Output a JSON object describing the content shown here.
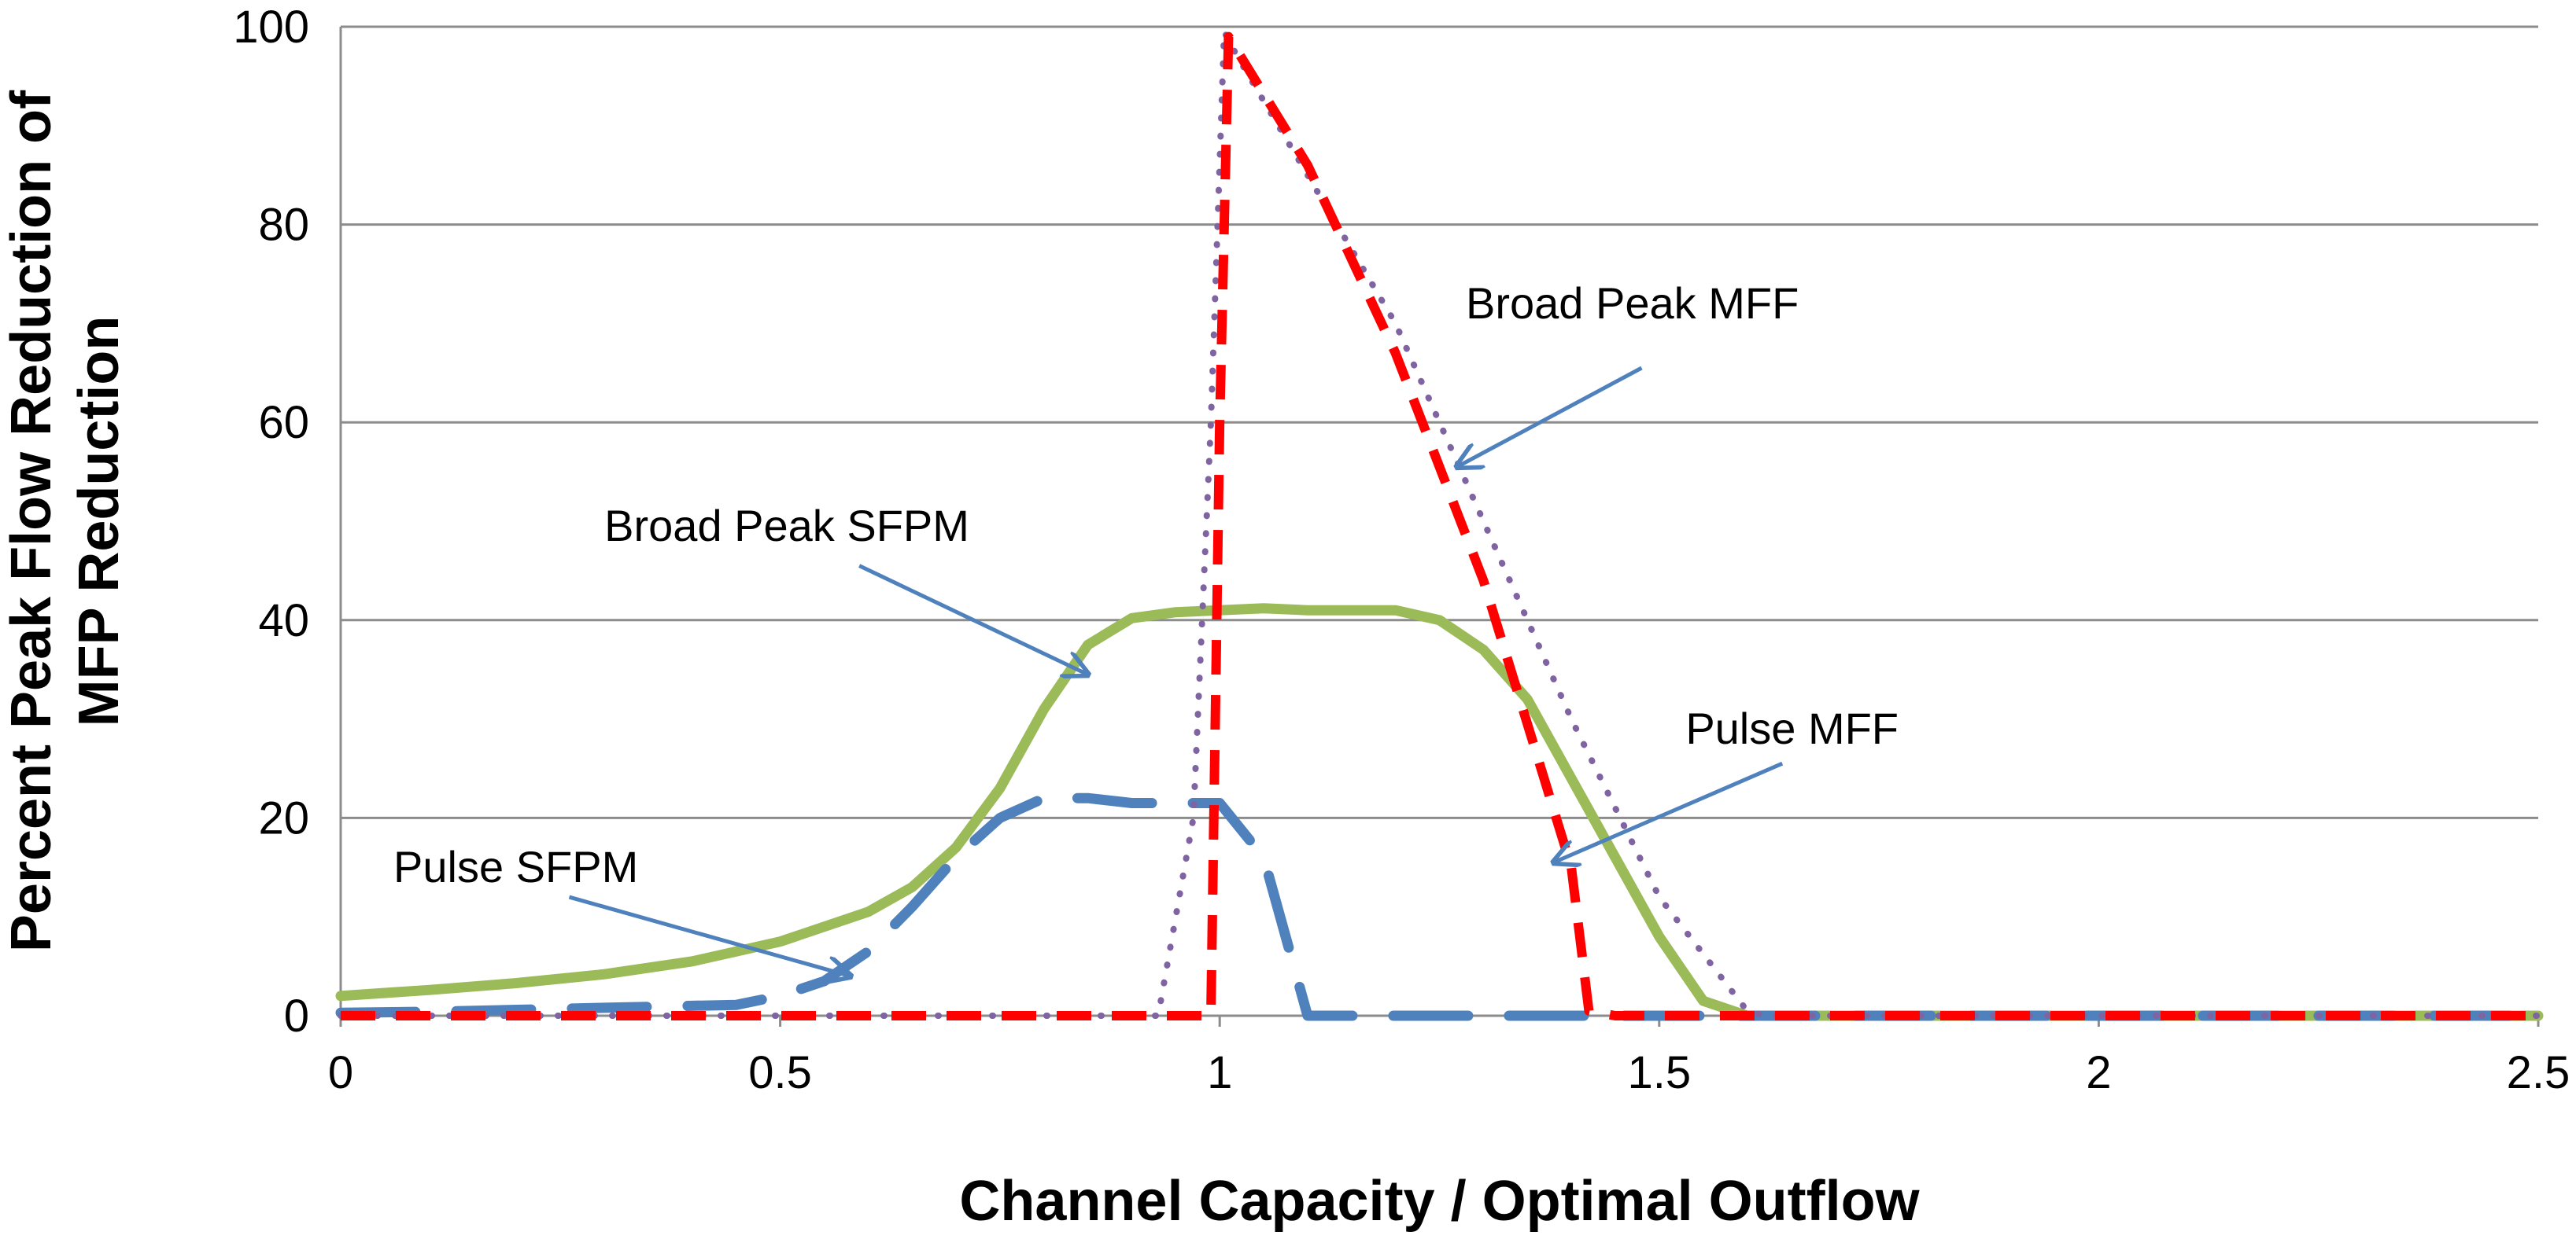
{
  "chart_data": {
    "type": "line",
    "title": "",
    "xlabel": "Channel Capacity / Optimal Outflow",
    "ylabel_lines": [
      "Percent Peak Flow Reduction of",
      "MFP Reduction"
    ],
    "xlim": [
      0,
      2.5
    ],
    "ylim": [
      0,
      100
    ],
    "xticks": [
      0,
      0.5,
      1,
      1.5,
      2,
      2.5
    ],
    "xtick_labels": [
      "0",
      "0.5",
      "1",
      "1.5",
      "2",
      "2.5"
    ],
    "yticks": [
      0,
      20,
      40,
      60,
      80,
      100
    ],
    "ytick_labels": [
      "0",
      "20",
      "40",
      "60",
      "80",
      "100"
    ],
    "grid": "horizontal",
    "series": [
      {
        "name": "Broad Peak SFPM",
        "color": "#9BBB59",
        "style": "solid",
        "x": [
          0,
          0.1,
          0.2,
          0.3,
          0.4,
          0.5,
          0.6,
          0.65,
          0.7,
          0.75,
          0.8,
          0.85,
          0.9,
          0.95,
          1.0,
          1.05,
          1.1,
          1.15,
          1.2,
          1.25,
          1.3,
          1.35,
          1.4,
          1.45,
          1.5,
          1.55,
          1.6,
          2.0,
          2.5
        ],
        "y": [
          2,
          2.6,
          3.3,
          4.2,
          5.5,
          7.5,
          10.5,
          13,
          17,
          23,
          31,
          37.5,
          40.2,
          40.8,
          41,
          41.2,
          41,
          41,
          41,
          40,
          37,
          32,
          24,
          16,
          8,
          1.5,
          0,
          0,
          0
        ]
      },
      {
        "name": "Pulse SFPM",
        "color": "#4F81BD",
        "style": "dashed",
        "x": [
          0,
          0.1,
          0.2,
          0.3,
          0.4,
          0.45,
          0.5,
          0.55,
          0.6,
          0.65,
          0.7,
          0.75,
          0.8,
          0.85,
          0.9,
          0.95,
          1.0,
          1.05,
          1.1,
          1.15,
          1.2,
          1.5,
          2.5
        ],
        "y": [
          0.3,
          0.4,
          0.6,
          0.8,
          1.0,
          1.1,
          2,
          3.5,
          6.5,
          11,
          16,
          20,
          22,
          22,
          21.5,
          21.5,
          21.5,
          16,
          0,
          0,
          0,
          0,
          0
        ]
      },
      {
        "name": "Broad Peak MFF",
        "color": "#8064A2",
        "style": "dotted",
        "x": [
          0,
          0.5,
          0.93,
          0.97,
          0.99,
          1.005,
          1.02,
          1.1,
          1.2,
          1.3,
          1.4,
          1.5,
          1.6,
          1.62,
          2.0,
          2.5
        ],
        "y": [
          0,
          0,
          0,
          20,
          60,
          99.5,
          97,
          85,
          70,
          50,
          30,
          12,
          0.5,
          0,
          0,
          0
        ]
      },
      {
        "name": "Pulse MFF",
        "color": "#FF0000",
        "style": "dashed",
        "x": [
          0,
          0.5,
          0.95,
          0.99,
          1.0,
          1.01,
          1.1,
          1.2,
          1.3,
          1.4,
          1.42,
          1.45,
          2.0,
          2.5
        ],
        "y": [
          0,
          0,
          0,
          0,
          60,
          99,
          86,
          67,
          44,
          15,
          0.5,
          0,
          0,
          0
        ]
      }
    ],
    "annotations": [
      {
        "text": "Broad Peak MFF",
        "text_at": [
          1.28,
          70.5
        ],
        "arrow_from": [
          1.48,
          65.5
        ],
        "arrow_to": [
          1.27,
          55.5
        ]
      },
      {
        "text": "Broad Peak SFPM",
        "text_at": [
          0.3,
          48
        ],
        "arrow_from": [
          0.59,
          45.5
        ],
        "arrow_to": [
          0.85,
          34.5
        ]
      },
      {
        "text": "Pulse MFF",
        "text_at": [
          1.53,
          27.5
        ],
        "arrow_from": [
          1.64,
          25.5
        ],
        "arrow_to": [
          1.38,
          15.5
        ]
      },
      {
        "text": "Pulse SFPM",
        "text_at": [
          0.06,
          13.5
        ],
        "arrow_from": [
          0.26,
          12
        ],
        "arrow_to": [
          0.58,
          4
        ]
      }
    ]
  }
}
